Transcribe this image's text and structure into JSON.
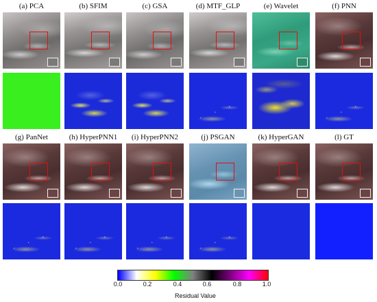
{
  "row1_labels": [
    "(a) PCA",
    "(b) SFIM",
    "(c) GSA",
    "(d) MTF_GLP",
    "(e) Wavelet",
    "(f) PNN"
  ],
  "row3_labels": [
    "(g) PanNet",
    "(h) HyperPNN1",
    "(i) HyperPNN2",
    "(j) PSGAN",
    "(k) HyperGAN",
    "(l) GT"
  ],
  "colorbar": {
    "title": "Residual Value",
    "ticks": [
      "0.0",
      "0.2",
      "0.4",
      "0.6",
      "0.8",
      "1.0"
    ],
    "stops": [
      "#0000ff",
      "#ffffff",
      "#ffff00",
      "#00ff00",
      "#808080",
      "#000000",
      "#800080",
      "#ff00ff",
      "#ff0000"
    ]
  }
}
